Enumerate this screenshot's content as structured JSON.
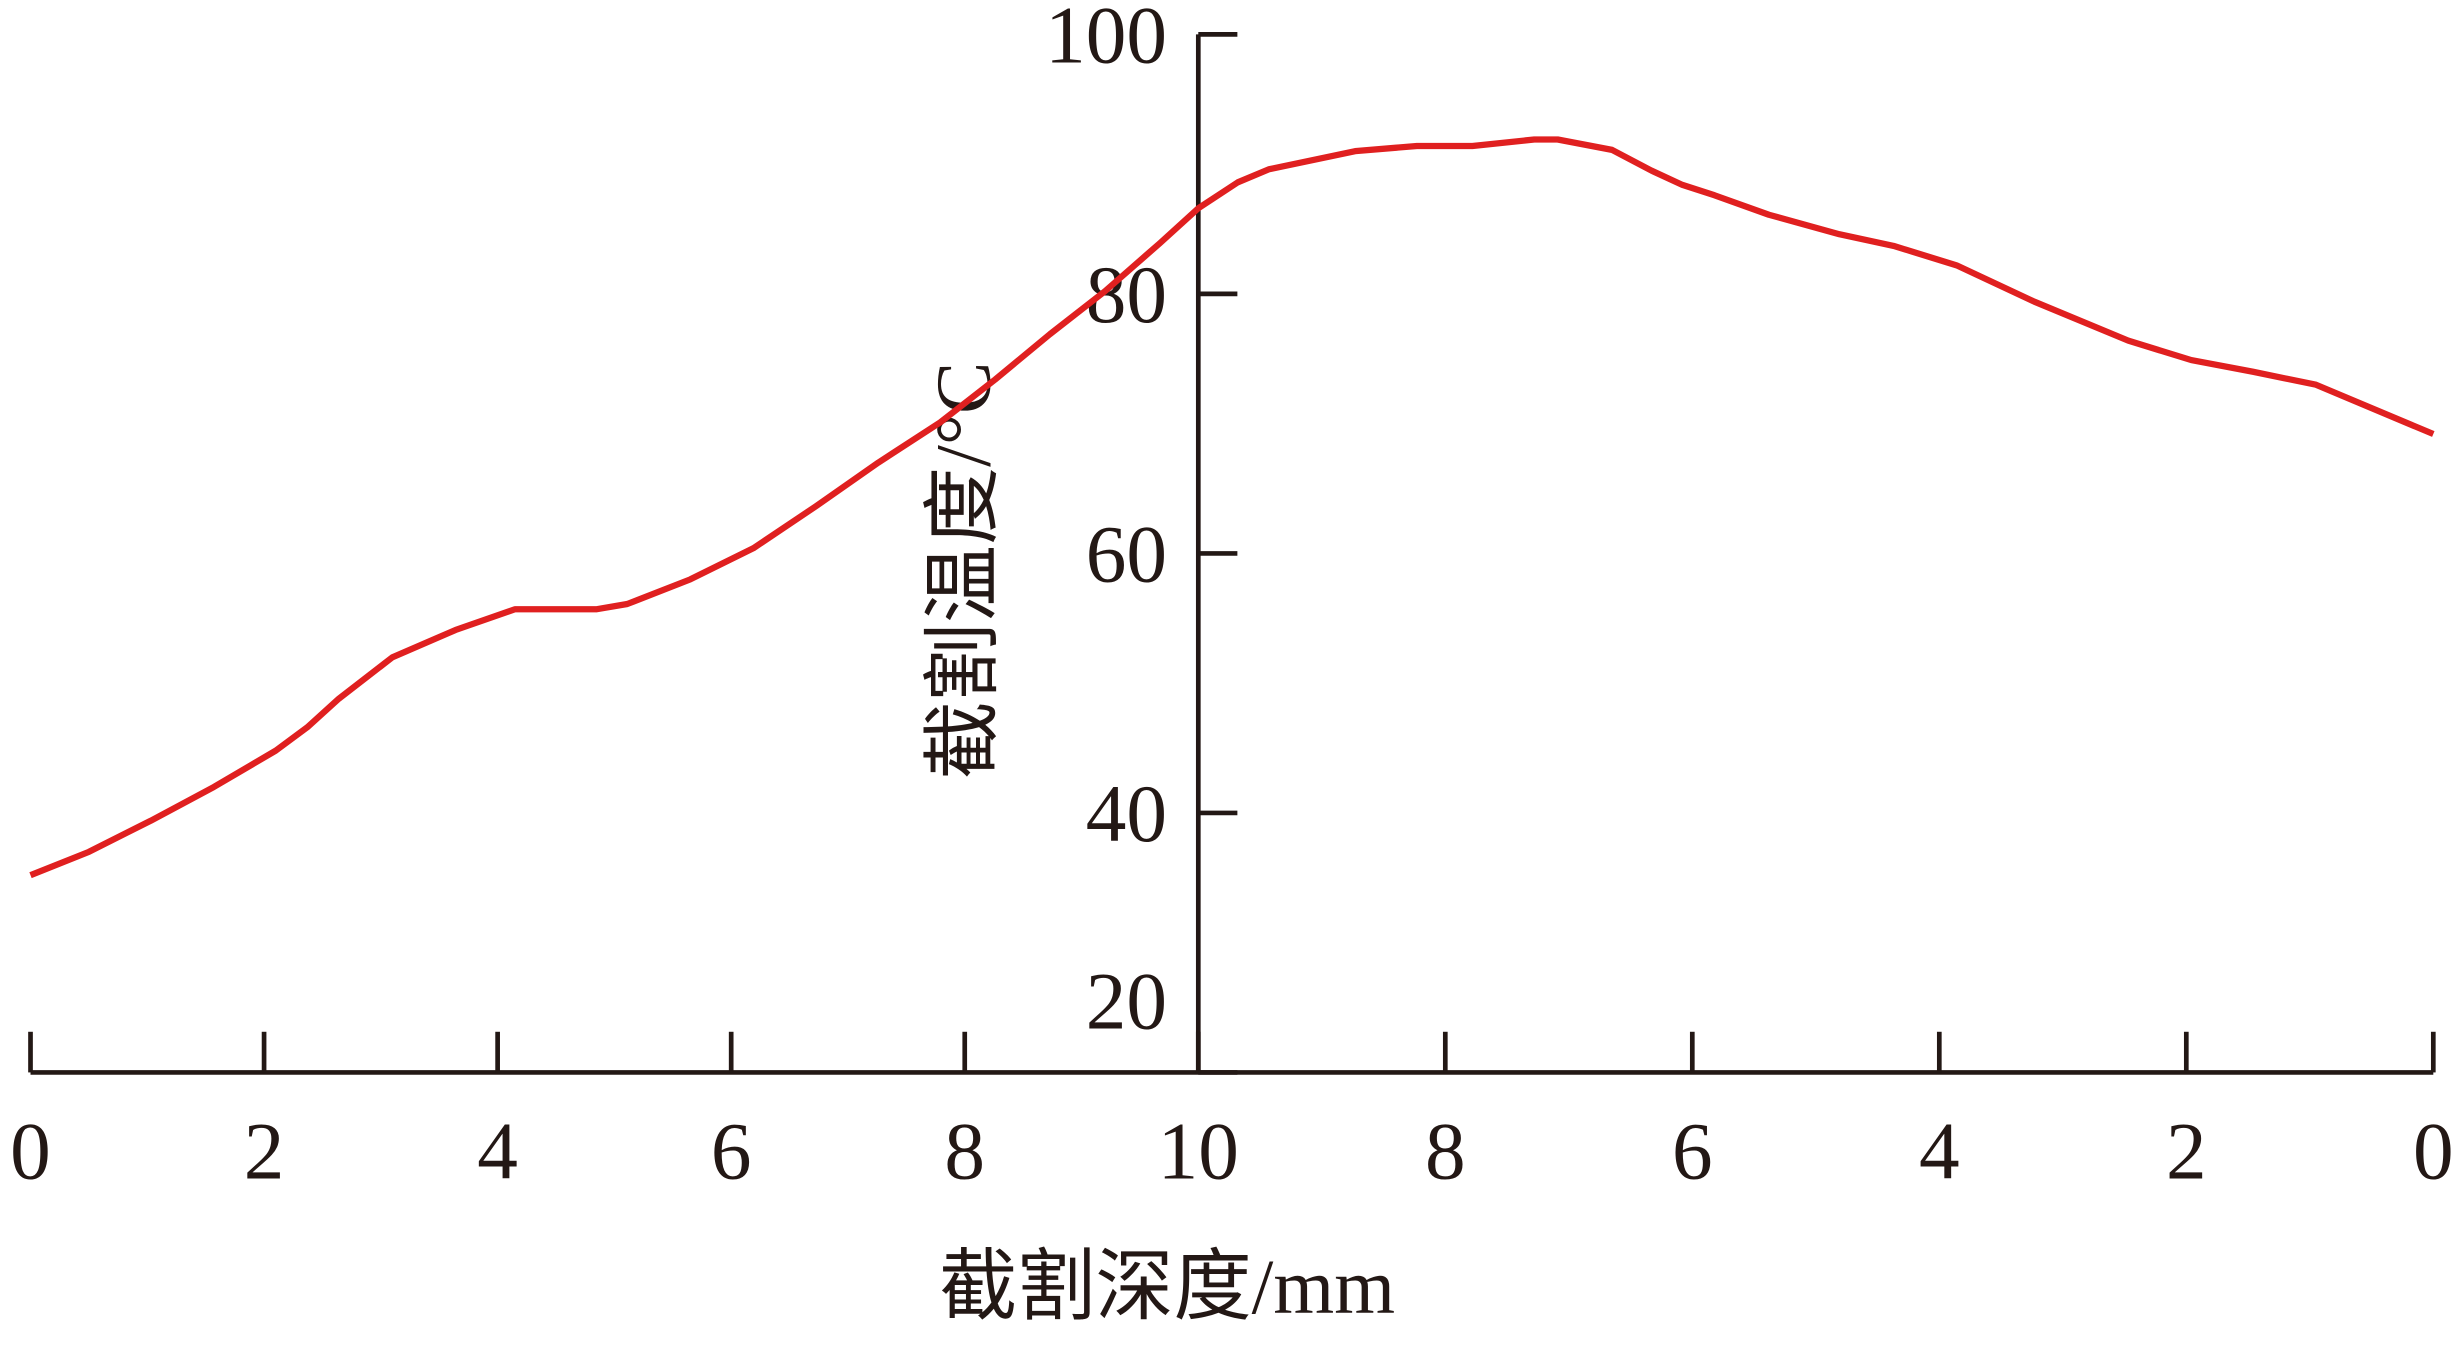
{
  "chart_data": {
    "type": "line",
    "xlabel": "截割深度/mm",
    "ylabel": "截割温度/°C",
    "xlim": [
      0,
      20
    ],
    "xticks": [
      0,
      2,
      4,
      6,
      8,
      10,
      {
        "value": 12,
        "label": "8"
      },
      {
        "value": 14,
        "label": "6"
      },
      {
        "value": 16,
        "label": "4"
      },
      {
        "value": 18,
        "label": "2"
      },
      {
        "value": 20,
        "label": "0"
      }
    ],
    "ylim": [
      20,
      100
    ],
    "yticks": [
      20,
      40,
      60,
      80,
      100
    ],
    "series": [
      {
        "color": "#e02020",
        "x": [
          0,
          0.5,
          1.03,
          1.57,
          2.1,
          2.37,
          2.64,
          3.1,
          3.64,
          4.15,
          4.85,
          5.11,
          5.65,
          6.19,
          6.72,
          7.26,
          7.79,
          8.26,
          8.73,
          9.2,
          9.67,
          10,
          10.32,
          10.57,
          11.27,
          11.77,
          12.22,
          12.72,
          12.91,
          13.35,
          13.67,
          13.92,
          14.18,
          14.62,
          15.19,
          15.63,
          16.14,
          16.77,
          17.53,
          18.04,
          18.54,
          19.05,
          20
        ],
        "values": [
          35.2,
          37.0,
          39.4,
          42.0,
          44.8,
          46.6,
          48.8,
          52.0,
          54.1,
          55.7,
          55.7,
          56.1,
          58.0,
          60.4,
          63.6,
          67.0,
          70.1,
          73.4,
          76.9,
          80.2,
          83.9,
          86.6,
          88.6,
          89.6,
          91.0,
          91.4,
          91.4,
          91.9,
          91.9,
          91.1,
          89.5,
          88.4,
          87.6,
          86.1,
          84.6,
          83.7,
          82.2,
          79.4,
          76.4,
          74.9,
          74.0,
          73.0,
          69.2
        ]
      }
    ]
  }
}
